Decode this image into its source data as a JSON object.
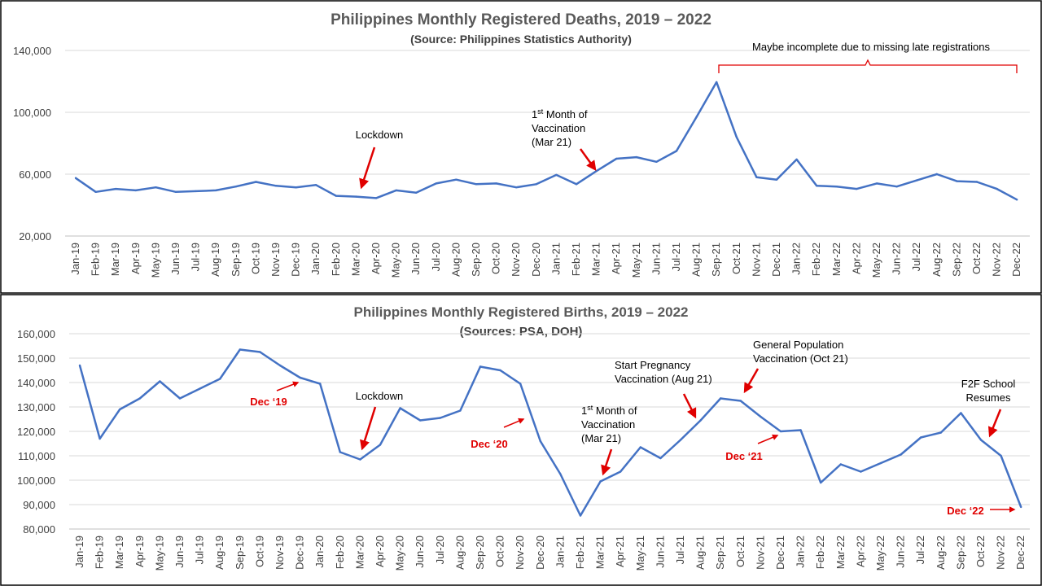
{
  "chart_data": [
    {
      "type": "line",
      "title": "Philippines Monthly Registered Deaths, 2019 – 2022",
      "subtitle": "(Source: Philippines Statistics Authority)",
      "categories": [
        "Jan-19",
        "Feb-19",
        "Mar-19",
        "Apr-19",
        "May-19",
        "Jun-19",
        "Jul-19",
        "Aug-19",
        "Sep-19",
        "Oct-19",
        "Nov-19",
        "Dec-19",
        "Jan-20",
        "Feb-20",
        "Mar-20",
        "Apr-20",
        "May-20",
        "Jun-20",
        "Jul-20",
        "Aug-20",
        "Sep-20",
        "Oct-20",
        "Nov-20",
        "Dec-20",
        "Jan-21",
        "Feb-21",
        "Mar-21",
        "Apr-21",
        "May-21",
        "Jun-21",
        "Jul-21",
        "Aug-21",
        "Sep-21",
        "Oct-21",
        "Nov-21",
        "Dec-21",
        "Jan-22",
        "Feb-22",
        "Mar-22",
        "Apr-22",
        "May-22",
        "Jun-22",
        "Jul-22",
        "Aug-22",
        "Sep-22",
        "Oct-22",
        "Nov-22",
        "Dec-22"
      ],
      "values": [
        57500,
        48500,
        50500,
        49500,
        51500,
        48500,
        49000,
        49500,
        52000,
        55000,
        52500,
        51500,
        53000,
        46000,
        45500,
        44500,
        49500,
        48000,
        54000,
        56500,
        53500,
        54000,
        51500,
        53500,
        59500,
        53500,
        62000,
        70000,
        71000,
        68000,
        75000,
        97000,
        119500,
        84000,
        58000,
        56500,
        69500,
        52500,
        52000,
        50500,
        54000,
        52000,
        56000,
        60000,
        55500,
        55000,
        50500,
        43500
      ],
      "ylim": [
        20000,
        140000
      ],
      "yticks": [
        "20,000",
        "60,000",
        "100,000",
        "140,000"
      ],
      "ytick_values": [
        20000,
        60000,
        100000,
        140000
      ],
      "grid": true,
      "annotations": {
        "lockdown": "Lockdown",
        "vacc_line1": "1",
        "vacc_sup": "st",
        "vacc_line1_rest": " Month of",
        "vacc_line2": "Vaccination",
        "vacc_line3": "(Mar 21)",
        "incomplete": "Maybe incomplete due to missing late registrations"
      }
    },
    {
      "type": "line",
      "title": "Philippines Monthly Registered Births, 2019 – 2022",
      "subtitle": "(Sources: PSA, DOH)",
      "categories": [
        "Jan-19",
        "Feb-19",
        "Mar-19",
        "Apr-19",
        "May-19",
        "Jun-19",
        "Jul-19",
        "Aug-19",
        "Sep-19",
        "Oct-19",
        "Nov-19",
        "Dec-19",
        "Jan-20",
        "Feb-20",
        "Mar-20",
        "Apr-20",
        "May-20",
        "Jun-20",
        "Jul-20",
        "Aug-20",
        "Sep-20",
        "Oct-20",
        "Nov-20",
        "Dec-20",
        "Jan-21",
        "Feb-21",
        "Mar-21",
        "Apr-21",
        "May-21",
        "Jun-21",
        "Jul-21",
        "Aug-21",
        "Sep-21",
        "Oct-21",
        "Nov-21",
        "Dec-21",
        "Jan-22",
        "Feb-22",
        "Mar-22",
        "Apr-22",
        "May-22",
        "Jun-22",
        "Jul-22",
        "Aug-22",
        "Sep-22",
        "Oct-22",
        "Nov-22",
        "Dec-22"
      ],
      "values": [
        147000,
        117000,
        129000,
        133500,
        140500,
        133500,
        137500,
        141500,
        153500,
        152500,
        147000,
        142000,
        139500,
        111500,
        108500,
        114500,
        129500,
        124500,
        125500,
        128500,
        146500,
        145000,
        139500,
        116000,
        102500,
        85500,
        99500,
        103500,
        113500,
        109000,
        116500,
        124500,
        133500,
        132500,
        126000,
        120000,
        120500,
        99000,
        106500,
        103500,
        107000,
        110500,
        117500,
        119500,
        127500,
        116500,
        110000,
        89000
      ],
      "ylim": [
        80000,
        160000
      ],
      "yticks": [
        "80,000",
        "90,000",
        "100,000",
        "110,000",
        "120,000",
        "130,000",
        "140,000",
        "150,000",
        "160,000"
      ],
      "ytick_values": [
        80000,
        90000,
        100000,
        110000,
        120000,
        130000,
        140000,
        150000,
        160000
      ],
      "grid": true,
      "annotations": {
        "dec19": "Dec ‘19",
        "lockdown": "Lockdown",
        "dec20": "Dec ‘20",
        "vacc_line1": "1",
        "vacc_sup": "st",
        "vacc_line1_rest": " Month of",
        "vacc_line2": "Vaccination",
        "vacc_line3": "(Mar 21)",
        "preg_line1": "Start Pregnancy",
        "preg_line2": "Vaccination (Aug 21)",
        "genpop_line1": "General Population",
        "genpop_line2": "Vaccination (Oct 21)",
        "dec21": "Dec ‘21",
        "f2f_line1": "F2F School",
        "f2f_line2": "Resumes",
        "dec22": "Dec ‘22"
      }
    }
  ],
  "colors": {
    "series": "#4472c4",
    "annotation_red": "#e00000"
  }
}
